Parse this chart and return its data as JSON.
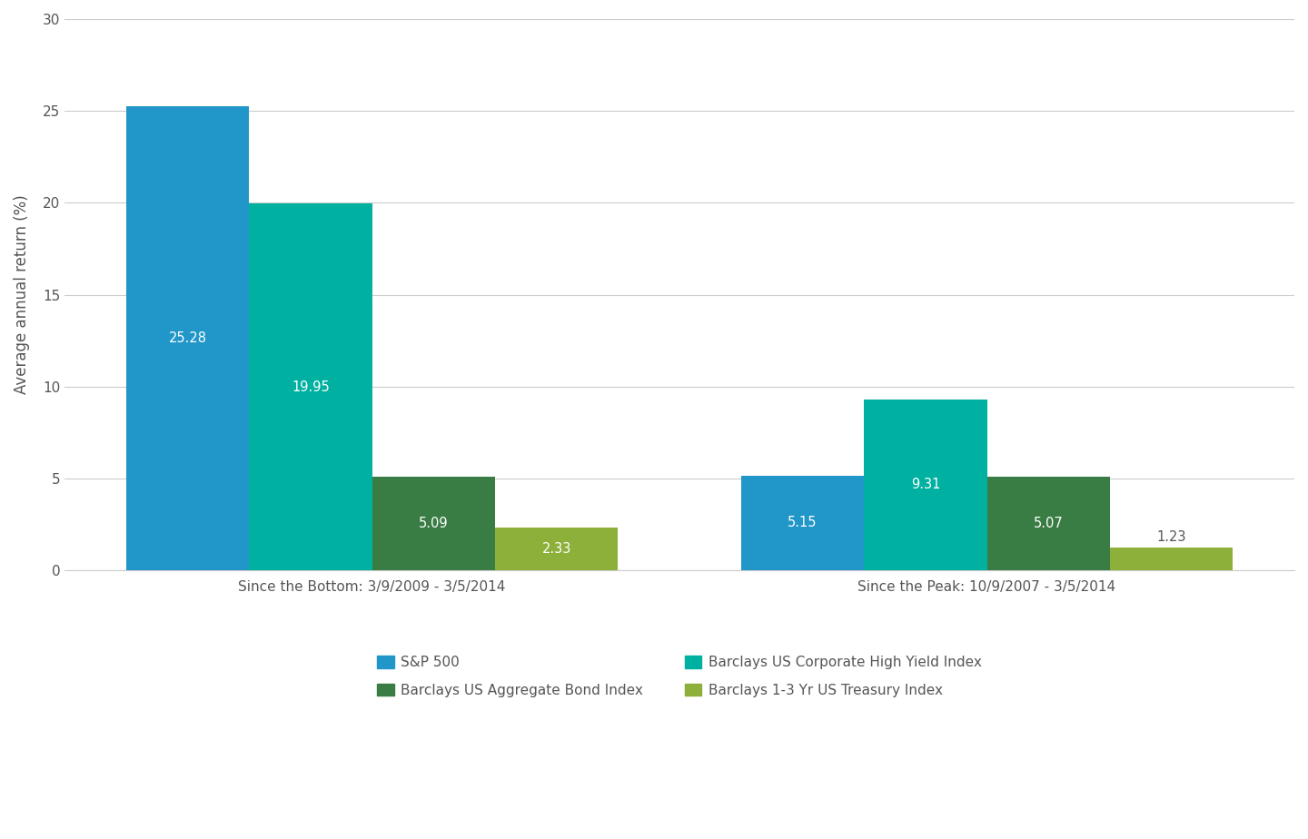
{
  "groups": [
    "Since the Bottom: 3/9/2009 - 3/5/2014",
    "Since the Peak: 10/9/2007 - 3/5/2014"
  ],
  "series": [
    {
      "name": "S&P 500",
      "color": "#2196c8",
      "values": [
        25.28,
        5.15
      ]
    },
    {
      "name": "Barclays US Corporate High Yield Index",
      "color": "#00b0a0",
      "values": [
        19.95,
        9.31
      ]
    },
    {
      "name": "Barclays US Aggregate Bond Index",
      "color": "#3a7d44",
      "values": [
        5.09,
        5.07
      ]
    },
    {
      "name": "Barclays 1-3 Yr US Treasury Index",
      "color": "#8db03a",
      "values": [
        2.33,
        1.23
      ]
    }
  ],
  "ylabel": "Average annual return (%)",
  "ylim": [
    0,
    30
  ],
  "yticks": [
    0,
    5,
    10,
    15,
    20,
    25,
    30
  ],
  "background_color": "#ffffff",
  "grid_color": "#cccccc",
  "bar_width": 0.12,
  "group_centers": [
    0.3,
    0.9
  ],
  "xlim": [
    0.0,
    1.2
  ],
  "label_fontsize": 11,
  "ylabel_fontsize": 12,
  "tick_fontsize": 11,
  "legend_fontsize": 11,
  "value_fontsize": 10.5,
  "value_color": "#ffffff",
  "legend_order": [
    0,
    2,
    1,
    3
  ]
}
